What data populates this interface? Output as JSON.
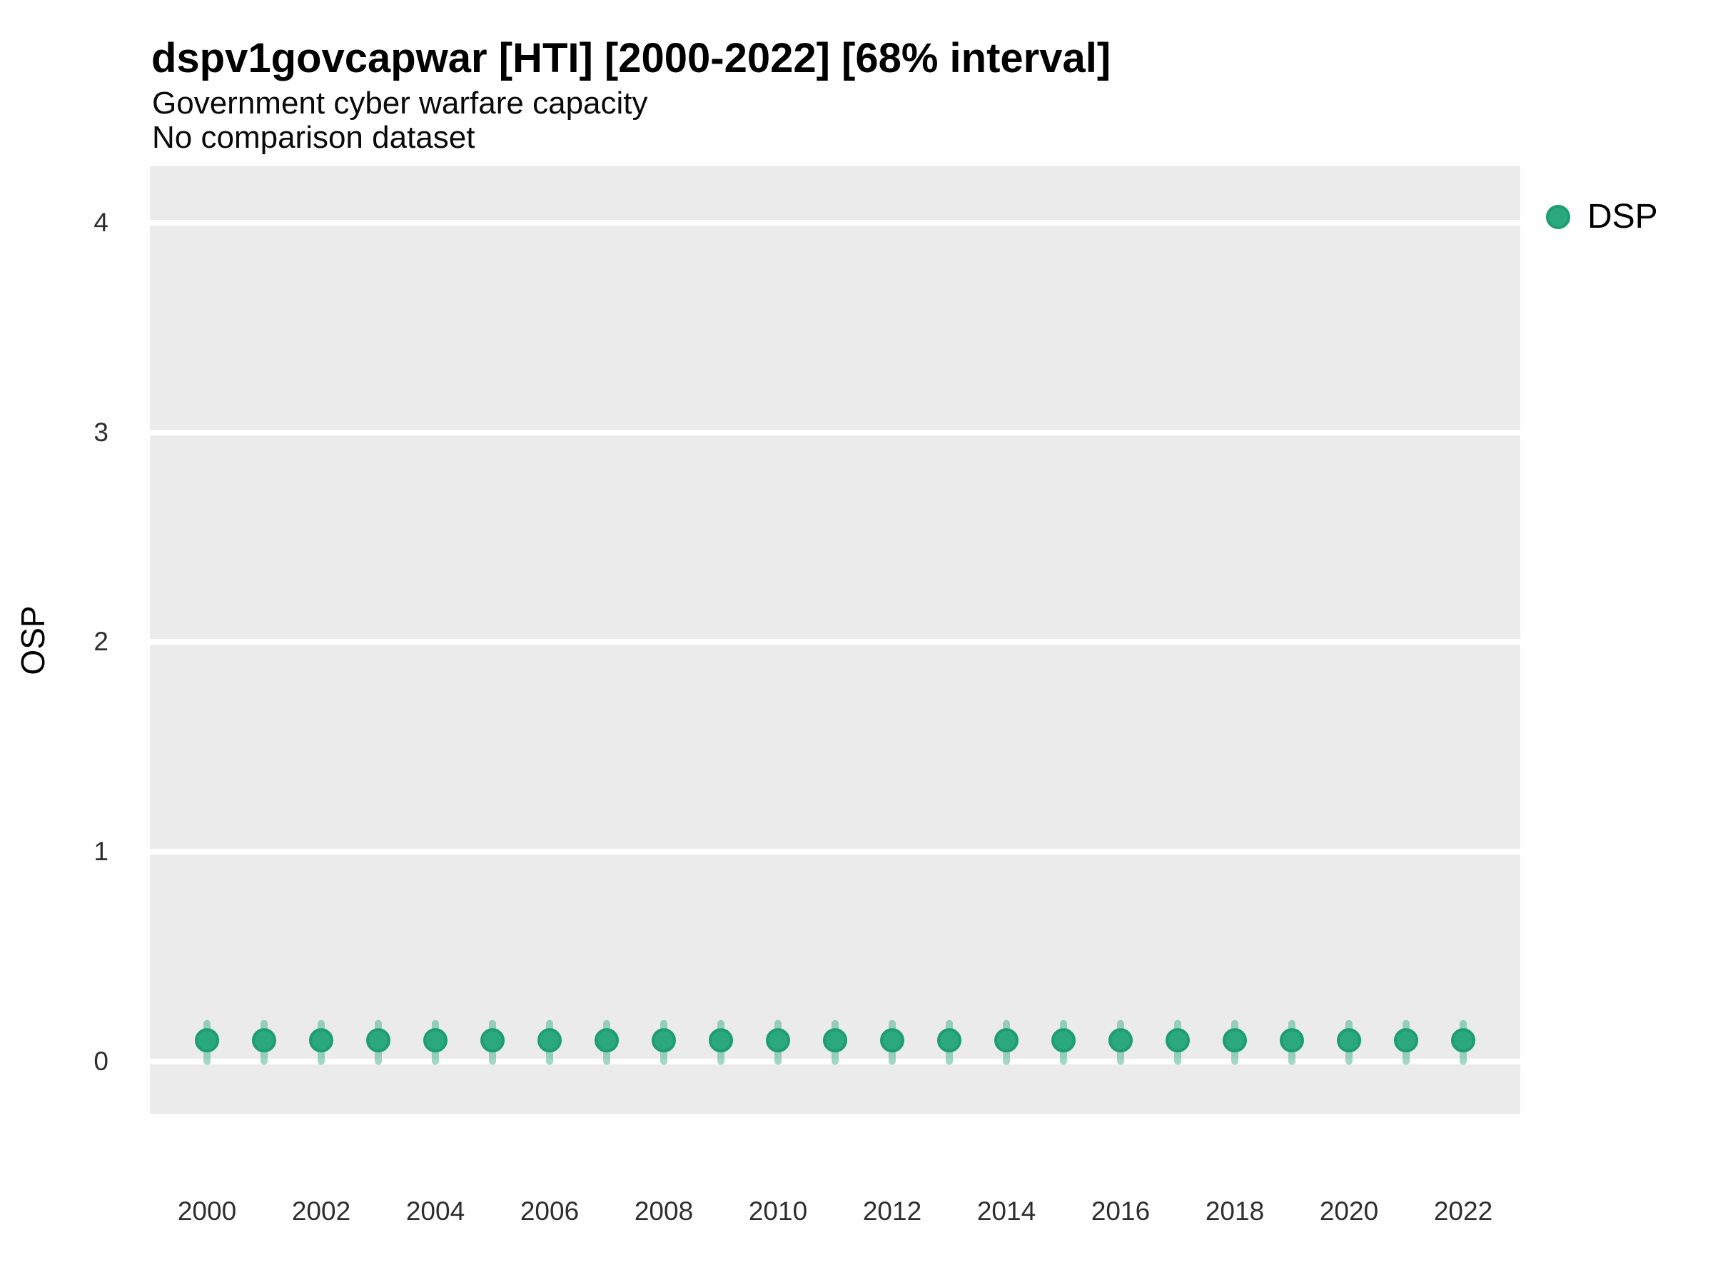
{
  "header": {
    "title": "dspv1govcapwar [HTI] [2000-2022] [68% interval]",
    "subtitle": "Government cyber warfare capacity",
    "comparison_note": "No comparison dataset"
  },
  "chart_data": {
    "type": "scatter",
    "title": "dspv1govcapwar [HTI] [2000-2022] [68% interval]",
    "subtitle": "Government cyber warfare capacity",
    "note": "No comparison dataset",
    "xlabel": "",
    "ylabel": "OSP",
    "interval_level": "68%",
    "x": [
      2000,
      2001,
      2002,
      2003,
      2004,
      2005,
      2006,
      2007,
      2008,
      2009,
      2010,
      2011,
      2012,
      2013,
      2014,
      2015,
      2016,
      2017,
      2018,
      2019,
      2020,
      2021,
      2022
    ],
    "series": [
      {
        "name": "DSP",
        "values": [
          0.1,
          0.1,
          0.1,
          0.1,
          0.1,
          0.1,
          0.1,
          0.1,
          0.1,
          0.1,
          0.1,
          0.1,
          0.1,
          0.1,
          0.1,
          0.1,
          0.1,
          0.1,
          0.1,
          0.1,
          0.1,
          0.1,
          0.1
        ],
        "interval_low": [
          0.0,
          0.0,
          0.0,
          0.0,
          0.0,
          0.0,
          0.0,
          0.0,
          0.0,
          0.0,
          0.0,
          0.0,
          0.0,
          0.0,
          0.0,
          0.0,
          0.0,
          0.0,
          0.0,
          0.0,
          0.0,
          0.0,
          0.0
        ],
        "interval_high": [
          0.18,
          0.18,
          0.18,
          0.18,
          0.18,
          0.18,
          0.18,
          0.18,
          0.18,
          0.18,
          0.18,
          0.18,
          0.18,
          0.18,
          0.18,
          0.18,
          0.18,
          0.18,
          0.18,
          0.18,
          0.18,
          0.18,
          0.18
        ]
      }
    ],
    "xticks": [
      2000,
      2002,
      2004,
      2006,
      2008,
      2010,
      2012,
      2014,
      2016,
      2018,
      2020,
      2022
    ],
    "yticks": [
      0,
      1,
      2,
      3,
      4
    ],
    "xlim": [
      1999,
      2023
    ],
    "ylim": [
      -0.25,
      4.27
    ],
    "legend": {
      "position": "right-top",
      "entries": [
        {
          "label": "DSP",
          "color": "#2BA87E"
        }
      ]
    },
    "style": {
      "panel_background": "#EBEBEB",
      "grid_color": "#FFFFFF",
      "point_fill": "#2BA87E",
      "point_stroke": "#1D9E71",
      "interval_color": "#2BA87E",
      "interval_alpha": 0.45,
      "grid": "major horizontal only"
    }
  }
}
